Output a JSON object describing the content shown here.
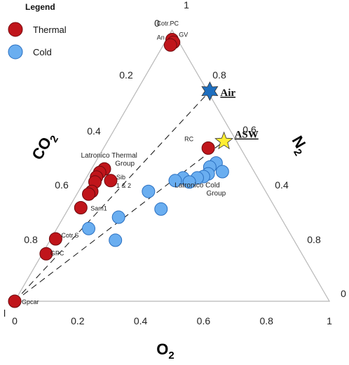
{
  "chart_data": {
    "type": "scatter",
    "subtype": "ternary",
    "legend": {
      "title": "Legend",
      "placement": "top-left",
      "entries": [
        {
          "name": "Thermal",
          "color": "#c0151b"
        },
        {
          "name": "Cold",
          "color": "#6aaef0"
        }
      ]
    },
    "axes": {
      "bottom": {
        "label": "O",
        "sub": "2",
        "ticks": [
          "0",
          "0.2",
          "0.4",
          "0.6",
          "0.8",
          "1"
        ]
      },
      "left": {
        "label": "CO",
        "sub": "2",
        "ticks": [
          "0",
          "0.2",
          "0.4",
          "0.6",
          "0.8",
          "1"
        ]
      },
      "right": {
        "label": "N",
        "sub": "2",
        "ticks": [
          "0",
          "0.4",
          "0.6",
          "0.8",
          "1"
        ]
      }
    },
    "series": [
      {
        "name": "Thermal",
        "color": "#c0151b",
        "points": [
          {
            "x": 0.5,
            "y": 0.965,
            "label": "Cotr.PC"
          },
          {
            "x": 0.505,
            "y": 0.955,
            "label": "An"
          },
          {
            "x": 0.495,
            "y": 0.945,
            "label": "GV"
          },
          {
            "x": 0.615,
            "y": 0.565,
            "label": "RC"
          },
          {
            "x": 0.285,
            "y": 0.488,
            "label": ""
          },
          {
            "x": 0.27,
            "y": 0.475,
            "label": ""
          },
          {
            "x": 0.26,
            "y": 0.458,
            "label": ""
          },
          {
            "x": 0.305,
            "y": 0.445,
            "label": "Sib 1 & 2"
          },
          {
            "x": 0.255,
            "y": 0.44,
            "label": ""
          },
          {
            "x": 0.245,
            "y": 0.405,
            "label": ""
          },
          {
            "x": 0.235,
            "y": 0.395,
            "label": ""
          },
          {
            "x": 0.21,
            "y": 0.345,
            "label": "Sam1"
          },
          {
            "x": 0.13,
            "y": 0.23,
            "label": "Cotr.S"
          },
          {
            "x": 0.1,
            "y": 0.175,
            "label": "GPC"
          },
          {
            "x": 0.0,
            "y": 0.0,
            "label": "Gpcar"
          }
        ]
      },
      {
        "name": "Cold",
        "color": "#6aaef0",
        "points": [
          {
            "x": 0.64,
            "y": 0.51
          },
          {
            "x": 0.62,
            "y": 0.495
          },
          {
            "x": 0.66,
            "y": 0.478
          },
          {
            "x": 0.615,
            "y": 0.47
          },
          {
            "x": 0.6,
            "y": 0.46
          },
          {
            "x": 0.58,
            "y": 0.455
          },
          {
            "x": 0.535,
            "y": 0.455
          },
          {
            "x": 0.51,
            "y": 0.445
          },
          {
            "x": 0.555,
            "y": 0.44
          },
          {
            "x": 0.425,
            "y": 0.405
          },
          {
            "x": 0.465,
            "y": 0.34
          },
          {
            "x": 0.33,
            "y": 0.31
          },
          {
            "x": 0.235,
            "y": 0.268
          },
          {
            "x": 0.32,
            "y": 0.225
          }
        ]
      }
    ],
    "references": [
      {
        "name": "Air",
        "x": 0.62,
        "y": 0.775,
        "color": "#1f6fbf",
        "shape": "star6"
      },
      {
        "name": "ASW",
        "x": 0.665,
        "y": 0.59,
        "color": "#ffee33",
        "shape": "star5"
      }
    ],
    "annotations": [
      {
        "text": "Latronico Thermal",
        "x": 0.3,
        "y": 0.53
      },
      {
        "text": "Group",
        "x": 0.35,
        "y": 0.5
      },
      {
        "text": "Latronico Cold",
        "x": 0.58,
        "y": 0.42
      },
      {
        "text": "Group",
        "x": 0.64,
        "y": 0.39
      }
    ],
    "mixing_lines": [
      {
        "from": [
          0.0,
          0.0
        ],
        "to": [
          0.62,
          0.775
        ]
      },
      {
        "from": [
          0.0,
          0.0
        ],
        "to": [
          0.665,
          0.59
        ]
      }
    ]
  }
}
